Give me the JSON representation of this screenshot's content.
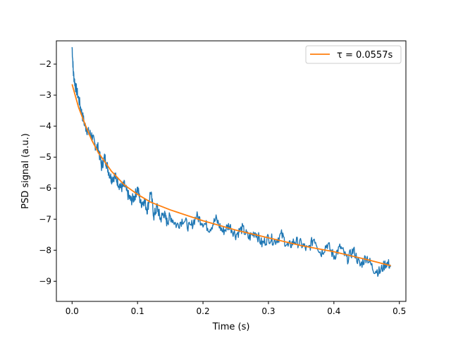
{
  "chart_data": {
    "type": "line",
    "title": "",
    "xlabel": "Time (s)",
    "ylabel": "PSD signal (a.u.)",
    "xlim": [
      -0.024,
      0.51
    ],
    "ylim": [
      -9.65,
      -1.25
    ],
    "x_ticks": [
      0.0,
      0.1,
      0.2,
      0.3,
      0.4,
      0.5
    ],
    "x_tick_labels": [
      "0.0",
      "0.1",
      "0.2",
      "0.3",
      "0.4",
      "0.5"
    ],
    "y_ticks": [
      -9,
      -8,
      -7,
      -6,
      -5,
      -4,
      -3,
      -2
    ],
    "y_tick_labels": [
      "−9",
      "−8",
      "−7",
      "−6",
      "−5",
      "−4",
      "−3",
      "−2"
    ],
    "grid": false,
    "legend": {
      "placement": "top-right"
    },
    "series": [
      {
        "name": "",
        "kind": "noisy-data",
        "color": "#1f77b4",
        "x": [
          0.0,
          0.002,
          0.005,
          0.01,
          0.015,
          0.02,
          0.025,
          0.03,
          0.035,
          0.04,
          0.045,
          0.05,
          0.055,
          0.06,
          0.065,
          0.07,
          0.075,
          0.08,
          0.085,
          0.09,
          0.095,
          0.1,
          0.105,
          0.11,
          0.115,
          0.12,
          0.125,
          0.13,
          0.135,
          0.14,
          0.145,
          0.15,
          0.16,
          0.17,
          0.18,
          0.19,
          0.2,
          0.21,
          0.22,
          0.23,
          0.24,
          0.25,
          0.26,
          0.27,
          0.28,
          0.29,
          0.3,
          0.31,
          0.32,
          0.33,
          0.34,
          0.35,
          0.36,
          0.37,
          0.38,
          0.39,
          0.4,
          0.41,
          0.42,
          0.43,
          0.44,
          0.45,
          0.46,
          0.47,
          0.48,
          0.487
        ],
        "values": [
          -1.45,
          -2.3,
          -2.7,
          -3.1,
          -3.6,
          -4.0,
          -4.2,
          -4.3,
          -4.6,
          -4.7,
          -5.3,
          -5.0,
          -5.4,
          -5.7,
          -5.6,
          -5.8,
          -6.0,
          -5.9,
          -6.2,
          -6.4,
          -6.3,
          -6.0,
          -6.5,
          -6.4,
          -6.7,
          -6.1,
          -6.9,
          -6.6,
          -7.0,
          -6.8,
          -7.1,
          -6.9,
          -7.2,
          -7.0,
          -7.3,
          -6.9,
          -7.1,
          -7.3,
          -7.0,
          -7.4,
          -7.2,
          -7.5,
          -7.3,
          -7.6,
          -7.4,
          -7.8,
          -7.6,
          -7.7,
          -7.5,
          -7.9,
          -7.7,
          -7.8,
          -8.0,
          -7.6,
          -8.1,
          -7.8,
          -8.2,
          -7.9,
          -8.3,
          -8.0,
          -8.5,
          -8.2,
          -8.6,
          -8.7,
          -8.4,
          -8.5
        ]
      },
      {
        "name": "τ = 0.0557s",
        "kind": "fit",
        "color": "#ff7f0e",
        "x": [
          0.0,
          0.01,
          0.02,
          0.03,
          0.04,
          0.05,
          0.06,
          0.08,
          0.1,
          0.12,
          0.15,
          0.2,
          0.25,
          0.3,
          0.35,
          0.4,
          0.45,
          0.487
        ],
        "values": [
          -2.65,
          -3.4,
          -3.95,
          -4.45,
          -4.85,
          -5.15,
          -5.45,
          -5.9,
          -6.2,
          -6.45,
          -6.7,
          -7.05,
          -7.35,
          -7.6,
          -7.85,
          -8.05,
          -8.3,
          -8.5
        ]
      }
    ]
  }
}
